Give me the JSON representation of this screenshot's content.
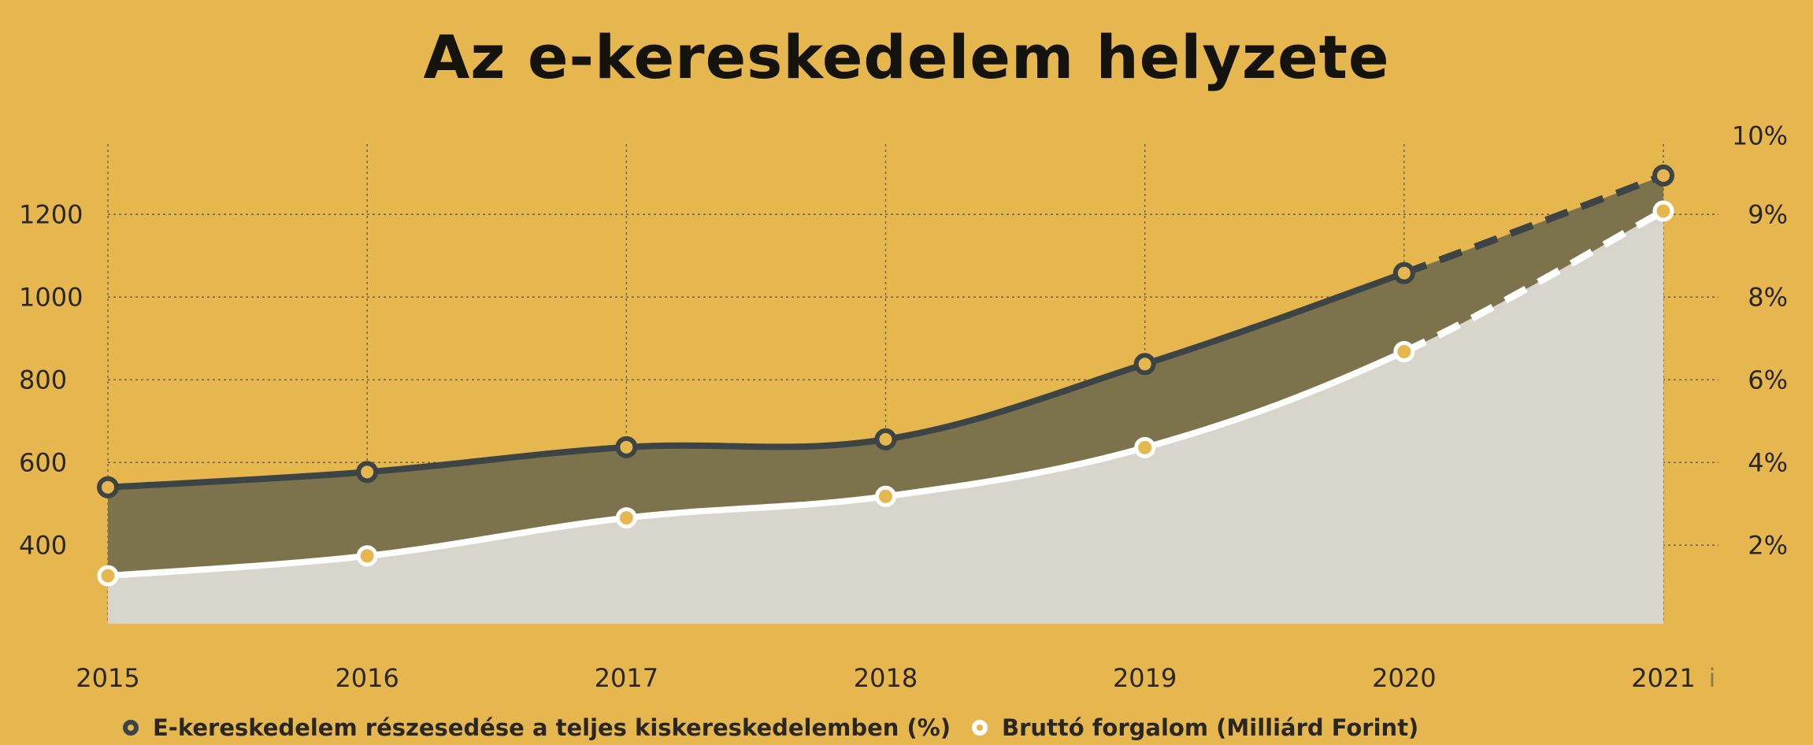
{
  "chart_data": {
    "type": "area",
    "title": "Az e-kereskedelem helyzete",
    "x": [
      "2015",
      "2016",
      "2017",
      "2018",
      "2019",
      "2020",
      "2021"
    ],
    "x_suffix_glyph": "i",
    "left_axis": {
      "ticks": [
        "400",
        "600",
        "800",
        "1000",
        "1200"
      ],
      "range": [
        210,
        1370
      ]
    },
    "right_axis": {
      "ticks": [
        "2%",
        "4%",
        "6%",
        "8%",
        "9%",
        "10%"
      ],
      "tick_values": [
        400,
        600,
        800,
        1000,
        1200,
        1390
      ]
    },
    "series": [
      {
        "name": "E-kereskedelem részesedése a teljes kiskereskedelemben (%)",
        "values": [
          540,
          577,
          637,
          656,
          838,
          1058,
          1294
        ],
        "color": "#3d4446",
        "dashed_from_index": 5
      },
      {
        "name": "Bruttó forgalom (Milliárd Forint)",
        "values": [
          326,
          374,
          466,
          518,
          636,
          868,
          1208
        ],
        "color": "#ffffff",
        "dashed_from_index": 5
      }
    ],
    "grid": true,
    "legend_position": "bottom",
    "colors": {
      "background": "#e6b74f",
      "band_fill": "#7c734d",
      "lower_fill": "#d8d6cc"
    }
  }
}
